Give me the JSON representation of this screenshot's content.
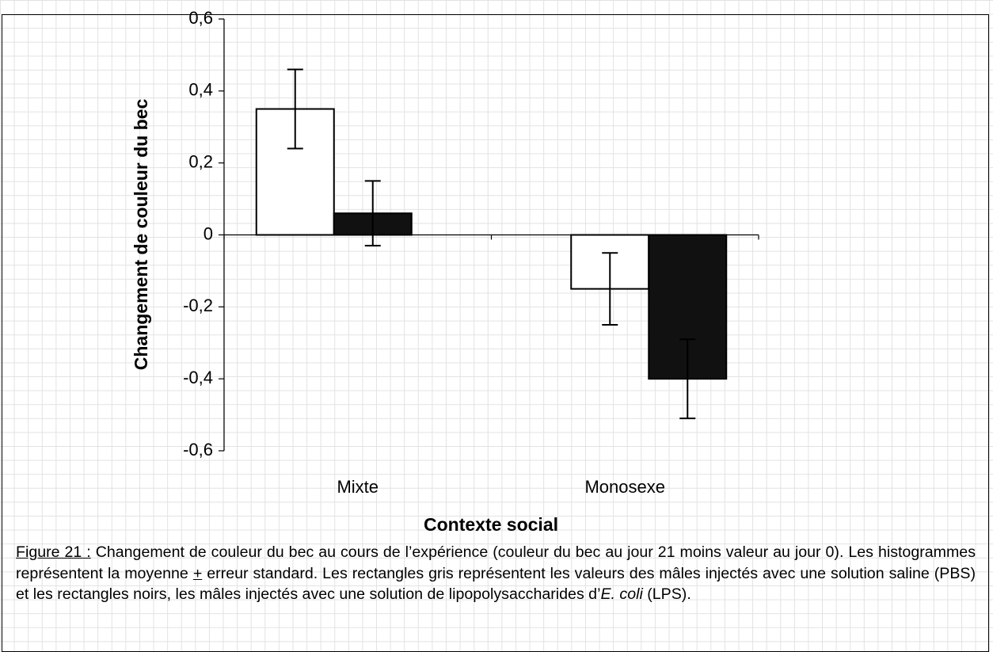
{
  "chart_data": {
    "type": "bar",
    "xlabel": "Contexte social",
    "ylabel": "Changement de couleur du bec",
    "categories": [
      "Mixte",
      "Monosexe"
    ],
    "series": [
      {
        "color": "#ffffff",
        "values": [
          0.35,
          -0.15
        ],
        "errors": [
          0.11,
          0.1
        ]
      },
      {
        "color": "#111111",
        "values": [
          0.06,
          -0.4
        ],
        "errors": [
          0.09,
          0.11
        ]
      }
    ],
    "ylim": [
      -0.6,
      0.6
    ],
    "yticks": [
      {
        "value": -0.6,
        "label": "-0,6"
      },
      {
        "value": -0.4,
        "label": "-0,4"
      },
      {
        "value": -0.2,
        "label": "-0,2"
      },
      0,
      {
        "value": 0.2,
        "label": "0,2"
      },
      {
        "value": 0.4,
        "label": "0,4"
      },
      {
        "value": 0.6,
        "label": "0,6"
      }
    ],
    "grid": false
  },
  "caption": {
    "label": "Figure 21 :",
    "text1": " Changement de couleur du bec au cours de l’expérience (couleur du bec au jour 21 moins valeur au jour 0). Les histogrammes représentent la moyenne ",
    "pm": "+",
    "text2": " erreur standard. Les rectangles gris représentent les valeurs des mâles injectés avec une solution saline (PBS) et les rectangles noirs, les mâles injectés avec une solution de lipopolysaccharides d’",
    "italic": "E. coli",
    "text3": " (LPS)."
  }
}
